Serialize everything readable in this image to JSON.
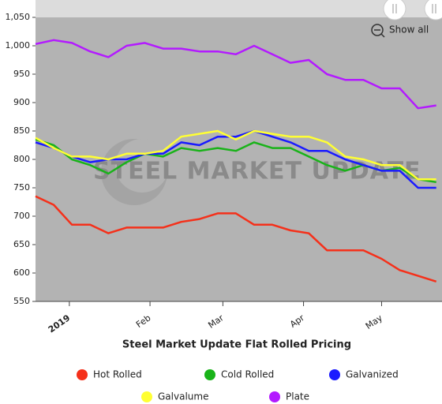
{
  "chart_data": {
    "type": "line",
    "title": "Steel Market Update Flat Rolled Pricing",
    "watermark": "STEEL MARKET UPDATE",
    "button": "Show all",
    "x": [
      -13,
      -6,
      1,
      8,
      15,
      22,
      29,
      36,
      43,
      50,
      57,
      64,
      71,
      78,
      85,
      92,
      99,
      106,
      113,
      120,
      127,
      134,
      141
    ],
    "xlim": [
      -13,
      142
    ],
    "xticks": [
      {
        "value": 0,
        "label": "2019"
      },
      {
        "value": 31,
        "label": "Feb"
      },
      {
        "value": 59,
        "label": "Mar"
      },
      {
        "value": 90,
        "label": "Apr"
      },
      {
        "value": 120,
        "label": "May"
      }
    ],
    "ylim": [
      550,
      1050
    ],
    "yticks": [
      550,
      600,
      650,
      700,
      750,
      800,
      850,
      900,
      950,
      {
        "value": 1000,
        "label": "1,000"
      },
      {
        "value": 1050,
        "label": "1,050"
      }
    ],
    "series": [
      {
        "name": "Hot Rolled",
        "color": "#f5301a",
        "values": [
          735,
          720,
          685,
          685,
          670,
          680,
          680,
          680,
          690,
          695,
          705,
          705,
          685,
          685,
          675,
          670,
          640,
          640,
          640,
          625,
          605,
          595,
          585
        ]
      },
      {
        "name": "Cold Rolled",
        "color": "#19b319",
        "values": [
          835,
          825,
          800,
          790,
          775,
          795,
          810,
          805,
          820,
          815,
          820,
          815,
          830,
          820,
          820,
          805,
          790,
          780,
          790,
          780,
          785,
          765,
          760
        ]
      },
      {
        "name": "Galvanized",
        "color": "#1a1aff",
        "values": [
          830,
          820,
          805,
          795,
          800,
          800,
          810,
          810,
          830,
          825,
          840,
          840,
          850,
          840,
          830,
          815,
          815,
          800,
          790,
          780,
          780,
          750,
          750
        ]
      },
      {
        "name": "Galvalume",
        "color": "#ffff33",
        "values": [
          838,
          820,
          805,
          805,
          800,
          810,
          810,
          815,
          840,
          845,
          850,
          835,
          850,
          845,
          840,
          840,
          830,
          805,
          800,
          790,
          790,
          765,
          765
        ]
      },
      {
        "name": "Plate",
        "color": "#b31aff",
        "values": [
          1003,
          1010,
          1005,
          990,
          980,
          1000,
          1005,
          995,
          995,
          990,
          990,
          985,
          1000,
          985,
          970,
          975,
          950,
          940,
          940,
          925,
          925,
          890,
          895
        ]
      }
    ]
  }
}
